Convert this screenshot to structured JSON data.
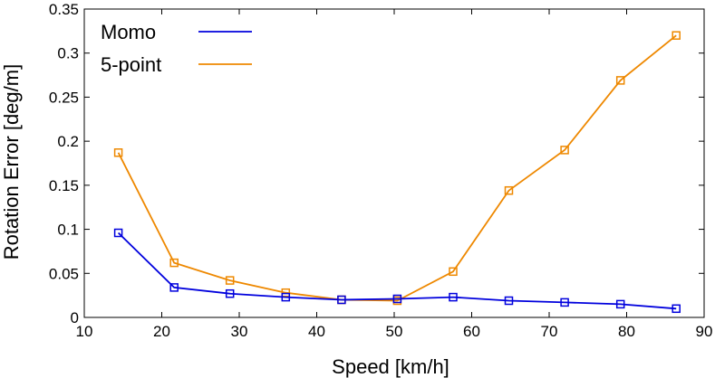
{
  "chart_data": {
    "type": "line",
    "xlabel": "Speed [km/h]",
    "ylabel": "Rotation Error [deg/m]",
    "xlim": [
      10,
      90
    ],
    "ylim": [
      0,
      0.35
    ],
    "xticks": [
      10,
      20,
      30,
      40,
      50,
      60,
      70,
      80,
      90
    ],
    "yticks": [
      0,
      0.05,
      0.1,
      0.15,
      0.2,
      0.25,
      0.3,
      0.35
    ],
    "xtick_labels": [
      "10",
      "20",
      "30",
      "40",
      "50",
      "60",
      "70",
      "80",
      "90"
    ],
    "ytick_labels": [
      "0",
      "0.05",
      "0.1",
      "0.15",
      "0.2",
      "0.25",
      "0.3",
      "0.35"
    ],
    "grid": false,
    "legend": "top-left",
    "x": [
      14.4,
      21.6,
      28.8,
      36.0,
      43.2,
      50.4,
      57.6,
      64.8,
      72.0,
      79.2,
      86.4
    ],
    "series": [
      {
        "name": "Momo",
        "color": "#0000dd",
        "marker": "square",
        "values": [
          0.096,
          0.034,
          0.027,
          0.023,
          0.02,
          0.021,
          0.023,
          0.019,
          0.017,
          0.015,
          0.01
        ]
      },
      {
        "name": "5-point",
        "color": "#ee8800",
        "marker": "square",
        "values": [
          0.187,
          0.062,
          0.042,
          0.028,
          0.02,
          0.019,
          0.052,
          0.144,
          0.19,
          0.269,
          0.32
        ]
      }
    ]
  }
}
